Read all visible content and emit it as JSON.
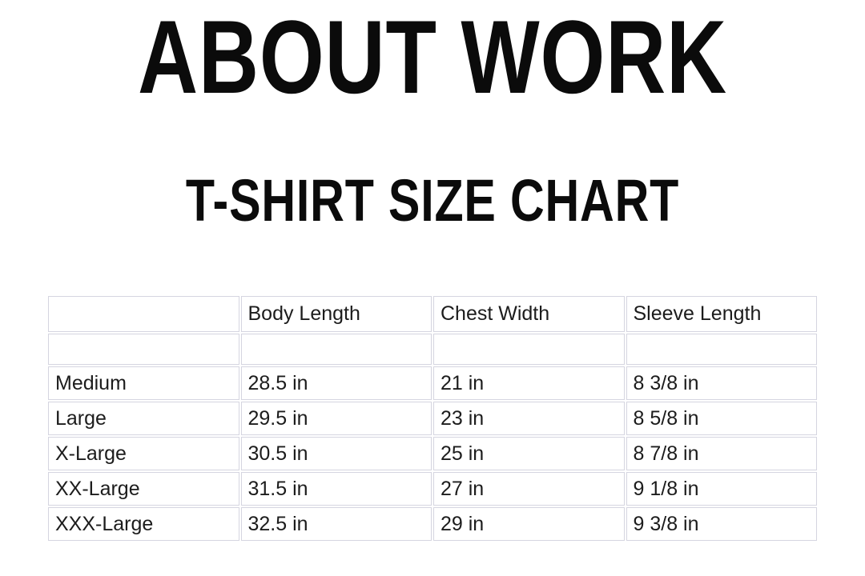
{
  "page": {
    "title": "ABOUT WORK",
    "subtitle": "T-SHIRT SIZE CHART"
  },
  "colors": {
    "background": "#ffffff",
    "text": "#0b0b0b",
    "table_border": "#d5d5e0"
  },
  "chart_data": {
    "type": "table",
    "title": "T-SHIRT SIZE CHART",
    "columns": [
      "",
      "Body Length",
      "Chest Width",
      "Sleeve Length"
    ],
    "rows": [
      [
        "",
        "",
        "",
        ""
      ],
      [
        "Medium",
        "28.5 in",
        "21 in",
        "8 3/8 in"
      ],
      [
        "Large",
        "29.5 in",
        "23 in",
        "8 5/8 in"
      ],
      [
        "X-Large",
        "30.5 in",
        "25 in",
        "8 7/8 in"
      ],
      [
        "XX-Large",
        "31.5 in",
        "27 in",
        "9 1/8 in"
      ],
      [
        "XXX-Large",
        "32.5 in",
        "29 in",
        "9 3/8 in"
      ]
    ]
  }
}
